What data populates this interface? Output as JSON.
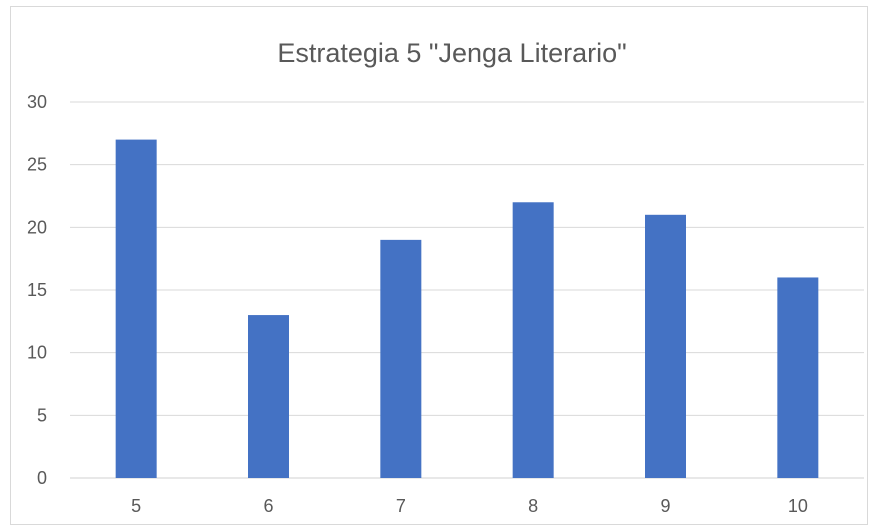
{
  "chart_data": {
    "type": "bar",
    "title": "Estrategia 5 \"Jenga Literario\"",
    "categories": [
      "5",
      "6",
      "7",
      "8",
      "9",
      "10"
    ],
    "values": [
      27,
      13,
      19,
      22,
      21,
      16
    ],
    "xlabel": "",
    "ylabel": "",
    "ylim": [
      0,
      30
    ],
    "yticks": [
      0,
      5,
      10,
      15,
      20,
      25,
      30
    ],
    "grid": true,
    "legend": "none",
    "bar_color": "#4472c4"
  }
}
